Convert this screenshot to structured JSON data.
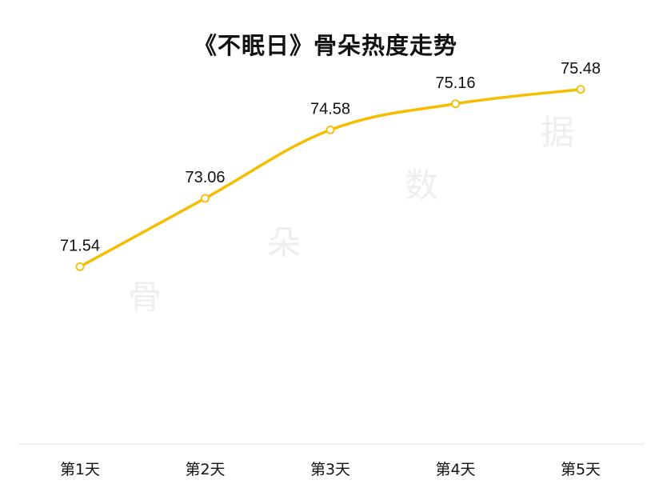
{
  "title": "《不眠日》骨朵热度走势",
  "watermark": [
    "骨",
    "朵",
    "数",
    "据"
  ],
  "colors": {
    "line": "#f5bd00",
    "axis": "#e3e3e3",
    "text": "#111111",
    "watermark": "#eeeeee"
  },
  "chart_data": {
    "type": "line",
    "title": "《不眠日》骨朵热度走势",
    "categories": [
      "第1天",
      "第2天",
      "第3天",
      "第4天",
      "第5天"
    ],
    "series": [
      {
        "values": [
          71.54,
          73.06,
          74.58,
          75.16,
          75.48
        ]
      }
    ],
    "data_labels": [
      "71.54",
      "73.06",
      "74.58",
      "75.16",
      "75.48"
    ],
    "ylim": [
      67.6,
      76.4
    ],
    "grid": false,
    "legend": "none",
    "smooth": true
  }
}
